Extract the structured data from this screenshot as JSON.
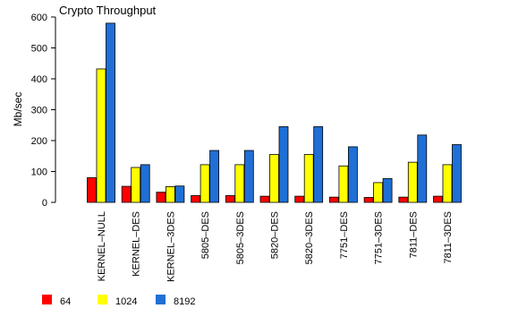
{
  "chart_data": {
    "type": "bar",
    "title": "Crypto Throughput",
    "ylabel": "Mb/sec",
    "xlabel": "",
    "ylim": [
      0,
      600
    ],
    "yticks": [
      0,
      100,
      200,
      300,
      400,
      500,
      600
    ],
    "grid": false,
    "legend_position": "bottom-left",
    "categories": [
      "KERNEL–NULL",
      "KERNEL–DES",
      "KERNEL–3DES",
      "5805–DES",
      "5805–3DES",
      "5820–DES",
      "5820–3DES",
      "7751–DES",
      "7751–3DES",
      "7811–DES",
      "7811–3DES"
    ],
    "series": [
      {
        "name": "64",
        "color": "#ff0000",
        "values": [
          80,
          52,
          33,
          22,
          22,
          20,
          20,
          17,
          16,
          17,
          20
        ]
      },
      {
        "name": "1024",
        "color": "#ffff00",
        "values": [
          432,
          113,
          51,
          122,
          122,
          155,
          155,
          118,
          64,
          130,
          122
        ]
      },
      {
        "name": "8192",
        "color": "#1f6fd6",
        "values": [
          580,
          122,
          53,
          168,
          168,
          245,
          245,
          180,
          77,
          218,
          187
        ]
      }
    ]
  }
}
